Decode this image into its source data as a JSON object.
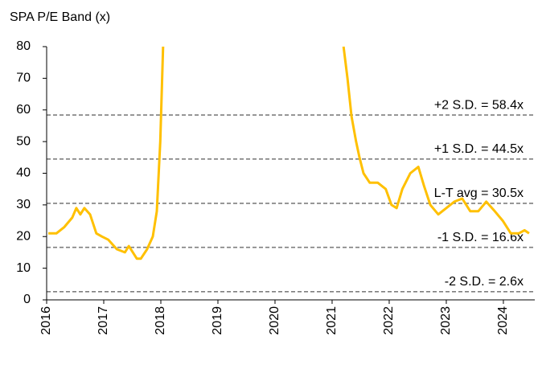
{
  "chart_data": {
    "type": "line",
    "title": "SPA P/E Band (x)",
    "x": [
      2016.03,
      2016.17,
      2016.31,
      2016.45,
      2016.52,
      2016.59,
      2016.66,
      2016.76,
      2016.87,
      2016.97,
      2017.08,
      2017.23,
      2017.37,
      2017.44,
      2017.51,
      2017.58,
      2017.65,
      2017.76,
      2017.86,
      2017.93,
      2017.99,
      2018.04,
      2019.5,
      2021.2,
      2021.27,
      2021.34,
      2021.42,
      2021.48,
      2021.55,
      2021.66,
      2021.8,
      2021.94,
      2022.04,
      2022.13,
      2022.23,
      2022.37,
      2022.51,
      2022.61,
      2022.72,
      2022.86,
      2023.0,
      2023.14,
      2023.28,
      2023.42,
      2023.56,
      2023.7,
      2023.85,
      2023.99,
      2024.13,
      2024.27,
      2024.37,
      2024.45
    ],
    "series": [
      {
        "name": "SPA P/E",
        "color": "#FFC000",
        "values": [
          21,
          21,
          23,
          26,
          29,
          27,
          29,
          27,
          21,
          20,
          19,
          16,
          15,
          17,
          15,
          13,
          13,
          16,
          20,
          28,
          50,
          80,
          null,
          80,
          70,
          58,
          50,
          45,
          40,
          37,
          37,
          35,
          30,
          29,
          35,
          40,
          42,
          36,
          30,
          27,
          29,
          31,
          32,
          28,
          28,
          31,
          28,
          25,
          21,
          21,
          22,
          21
        ]
      }
    ],
    "bands": [
      {
        "label": "+2 S.D. = 58.4x",
        "value": 58.4
      },
      {
        "label": "+1 S.D. = 44.5x",
        "value": 44.5
      },
      {
        "label": "L-T avg = 30.5x",
        "value": 30.5
      },
      {
        "label": "-1 S.D. = 16.6x",
        "value": 16.6
      },
      {
        "label": "-2 S.D. = 2.6x",
        "value": 2.6
      }
    ],
    "xlim": [
      2016,
      2024.55
    ],
    "xticks": [
      2016,
      2017,
      2018,
      2019,
      2020,
      2021,
      2022,
      2023,
      2024
    ],
    "ylim": [
      0,
      80
    ],
    "yticks": [
      0,
      10,
      20,
      30,
      40,
      50,
      60,
      70,
      80
    ],
    "grid": false
  }
}
